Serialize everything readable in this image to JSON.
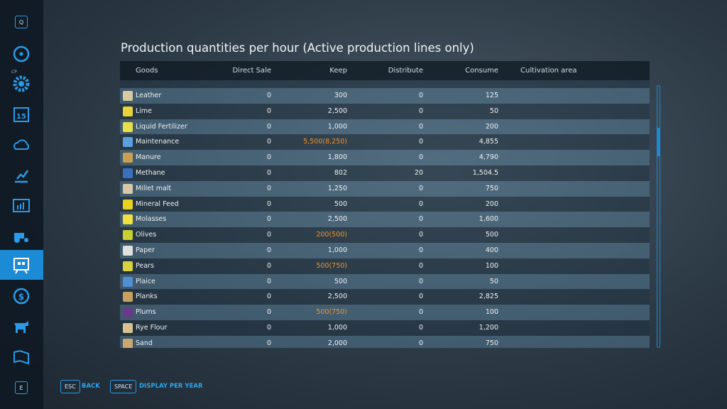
{
  "title": "Production quantities per hour (Active production lines only)",
  "sidebar": {
    "top_key": "Q",
    "cp": "CP",
    "calendar_day": "15",
    "bottom_key": "E"
  },
  "table": {
    "headers": [
      "Goods",
      "Direct Sale",
      "Keep",
      "Distribute",
      "Consume",
      "Cultivation area"
    ],
    "rows": [
      [
        "Leather",
        "0",
        "300",
        "0",
        "125"
      ],
      [
        "Lime",
        "0",
        "2,500",
        "0",
        "50"
      ],
      [
        "Liquid Fertilizer",
        "0",
        "1,000",
        "0",
        "200"
      ],
      [
        "Maintenance",
        "0",
        "5,500(8,250)",
        "0",
        "4,855"
      ],
      [
        "Manure",
        "0",
        "1,800",
        "0",
        "4,790"
      ],
      [
        "Methane",
        "0",
        "802",
        "20",
        "1,504.5"
      ],
      [
        "Millet malt",
        "0",
        "1,250",
        "0",
        "750"
      ],
      [
        "Mineral Feed",
        "0",
        "500",
        "0",
        "200"
      ],
      [
        "Molasses",
        "0",
        "2,500",
        "0",
        "1,600"
      ],
      [
        "Olives",
        "0",
        "200(500)",
        "0",
        "500"
      ],
      [
        "Paper",
        "0",
        "1,000",
        "0",
        "400"
      ],
      [
        "Pears",
        "0",
        "500(750)",
        "0",
        "100"
      ],
      [
        "Plaice",
        "0",
        "500",
        "0",
        "50"
      ],
      [
        "Planks",
        "0",
        "2,500",
        "0",
        "2,825"
      ],
      [
        "Plums",
        "0",
        "500(750)",
        "0",
        "100"
      ],
      [
        "Rye Flour",
        "0",
        "1,000",
        "0",
        "1,200"
      ],
      [
        "Sand",
        "0",
        "2,000",
        "0",
        "750"
      ]
    ]
  },
  "footer": {
    "buttons": [
      {
        "key": "ESC",
        "label": "BACK"
      },
      {
        "key": "SPACE",
        "label": "DISPLAY PER YEAR"
      }
    ]
  }
}
